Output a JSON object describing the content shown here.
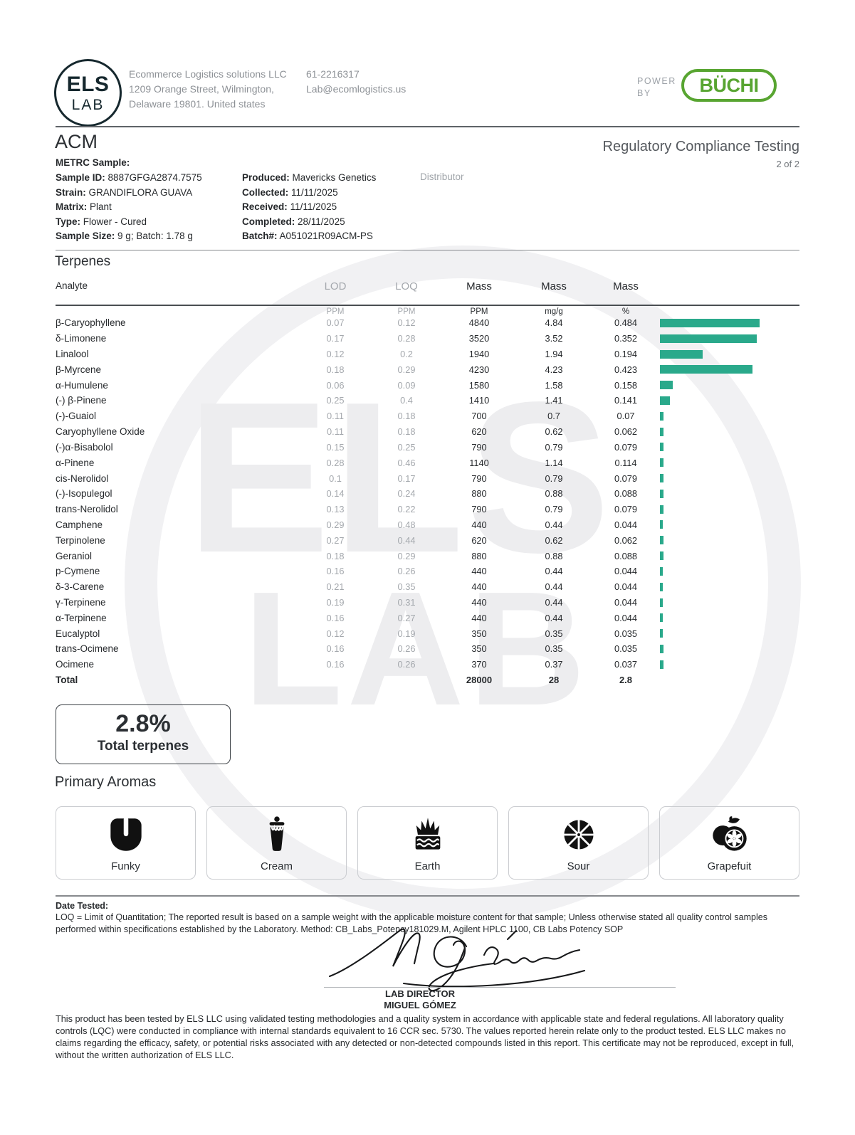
{
  "header": {
    "logo": {
      "line1": "ELS",
      "line2": "LAB"
    },
    "company": {
      "name": "Ecommerce Logistics solutions LLC",
      "address1": "1209 Orange Street, Wilmington,",
      "address2": "Delaware 19801. United states"
    },
    "contact": {
      "phone": "61-2216317",
      "email": "Lab@ecomlogistics.us"
    },
    "power_by": {
      "label1": "POWER",
      "label2": "BY",
      "brand": "BÜCHI",
      "brand_color": "#58a531"
    }
  },
  "report": {
    "client": "ACM",
    "title": "Regulatory Compliance Testing",
    "page": "2 of 2",
    "metrc_label": "METRC Sample:",
    "meta_col1": [
      {
        "label": "Sample ID:",
        "value": "8887GFGA2874.7575"
      },
      {
        "label": "Strain:",
        "value": "GRANDIFLORA GUAVA"
      },
      {
        "label": "Matrix:",
        "value": "Plant"
      },
      {
        "label": "Type:",
        "value": "Flower - Cured"
      },
      {
        "label": "Sample Size:",
        "value": "9 g; Batch: 1.78 g"
      }
    ],
    "meta_col2": [
      {
        "label": "Produced:",
        "value": "Mavericks Genetics"
      },
      {
        "label": "Collected:",
        "value": "11/11/2025"
      },
      {
        "label": "Received:",
        "value": "11/11/2025"
      },
      {
        "label": "Completed:",
        "value": "28/11/2025"
      },
      {
        "label": "Batch#:",
        "value": "A051021R09ACM-PS"
      }
    ],
    "distributor_label": "Distributor"
  },
  "terpenes": {
    "section_title": "Terpenes",
    "columns": [
      "Analyte",
      "LOD",
      "LOQ",
      "Mass",
      "Mass",
      "Mass"
    ],
    "units": [
      "PPM",
      "PPM",
      "PPM",
      "mg/g",
      "%"
    ],
    "bar_color": "#2aa98b",
    "rows": [
      {
        "name": "β-Caryophyllene",
        "lod": "0.07",
        "loq": "0.12",
        "ppm": "4840",
        "mgg": "4.84",
        "pct": "0.484",
        "bar": 140
      },
      {
        "name": "δ-Limonene",
        "lod": "0.17",
        "loq": "0.28",
        "ppm": "3520",
        "mgg": "3.52",
        "pct": "0.352",
        "bar": 136
      },
      {
        "name": "Linalool",
        "lod": "0.12",
        "loq": "0.2",
        "ppm": "1940",
        "mgg": "1.94",
        "pct": "0.194",
        "bar": 60
      },
      {
        "name": "β-Myrcene",
        "lod": "0.18",
        "loq": "0.29",
        "ppm": "4230",
        "mgg": "4.23",
        "pct": "0.423",
        "bar": 130
      },
      {
        "name": "α-Humulene",
        "lod": "0.06",
        "loq": "0.09",
        "ppm": "1580",
        "mgg": "1.58",
        "pct": "0.158",
        "bar": 18
      },
      {
        "name": "(-) β-Pinene",
        "lod": "0.25",
        "loq": "0.4",
        "ppm": "1410",
        "mgg": "1.41",
        "pct": "0.141",
        "bar": 14
      },
      {
        "name": "(-)-Guaiol",
        "lod": "0.11",
        "loq": "0.18",
        "ppm": "700",
        "mgg": "0.7",
        "pct": "0.07",
        "bar": 5
      },
      {
        "name": "Caryophyllene Oxide",
        "lod": "0.11",
        "loq": "0.18",
        "ppm": "620",
        "mgg": "0.62",
        "pct": "0.062",
        "bar": 5
      },
      {
        "name": "(-)α-Bisabolol",
        "lod": "0.15",
        "loq": "0.25",
        "ppm": "790",
        "mgg": "0.79",
        "pct": "0.079",
        "bar": 5
      },
      {
        "name": "α-Pinene",
        "lod": "0.28",
        "loq": "0.46",
        "ppm": "1140",
        "mgg": "1.14",
        "pct": "0.114",
        "bar": 5
      },
      {
        "name": "cis-Nerolidol",
        "lod": "0.1",
        "loq": "0.17",
        "ppm": "790",
        "mgg": "0.79",
        "pct": "0.079",
        "bar": 5
      },
      {
        "name": "(-)-Isopulegol",
        "lod": "0.14",
        "loq": "0.24",
        "ppm": "880",
        "mgg": "0.88",
        "pct": "0.088",
        "bar": 5
      },
      {
        "name": "trans-Nerolidol",
        "lod": "0.13",
        "loq": "0.22",
        "ppm": "790",
        "mgg": "0.79",
        "pct": "0.079",
        "bar": 5
      },
      {
        "name": "Camphene",
        "lod": "0.29",
        "loq": "0.48",
        "ppm": "440",
        "mgg": "0.44",
        "pct": "0.044",
        "bar": 4
      },
      {
        "name": "Terpinolene",
        "lod": "0.27",
        "loq": "0.44",
        "ppm": "620",
        "mgg": "0.62",
        "pct": "0.062",
        "bar": 5
      },
      {
        "name": "Geraniol",
        "lod": "0.18",
        "loq": "0.29",
        "ppm": "880",
        "mgg": "0.88",
        "pct": "0.088",
        "bar": 5
      },
      {
        "name": "p-Cymene",
        "lod": "0.16",
        "loq": "0.26",
        "ppm": "440",
        "mgg": "0.44",
        "pct": "0.044",
        "bar": 4
      },
      {
        "name": "δ-3-Carene",
        "lod": "0.21",
        "loq": "0.35",
        "ppm": "440",
        "mgg": "0.44",
        "pct": "0.044",
        "bar": 4
      },
      {
        "name": "γ-Terpinene",
        "lod": "0.19",
        "loq": "0.31",
        "ppm": "440",
        "mgg": "0.44",
        "pct": "0.044",
        "bar": 4
      },
      {
        "name": "α-Terpinene",
        "lod": "0.16",
        "loq": "0.27",
        "ppm": "440",
        "mgg": "0.44",
        "pct": "0.044",
        "bar": 4
      },
      {
        "name": "Eucalyptol",
        "lod": "0.12",
        "loq": "0.19",
        "ppm": "350",
        "mgg": "0.35",
        "pct": "0.035",
        "bar": 4
      },
      {
        "name": "trans-Ocimene",
        "lod": "0.16",
        "loq": "0.26",
        "ppm": "350",
        "mgg": "0.35",
        "pct": "0.035",
        "bar": 5
      },
      {
        "name": "Ocimene",
        "lod": "0.16",
        "loq": "0.26",
        "ppm": "370",
        "mgg": "0.37",
        "pct": "0.037",
        "bar": 5
      }
    ],
    "total": {
      "label": "Total",
      "ppm": "28000",
      "mgg": "28",
      "pct": "2.8"
    }
  },
  "summary": {
    "value": "2.8%",
    "label": "Total terpenes"
  },
  "aromas": {
    "section_title": "Primary Aromas",
    "items": [
      {
        "label": "Funky",
        "icon": "funky-icon"
      },
      {
        "label": "Cream",
        "icon": "cream-icon"
      },
      {
        "label": "Earth",
        "icon": "earth-icon"
      },
      {
        "label": "Sour",
        "icon": "sour-icon"
      },
      {
        "label": "Grapefuit",
        "icon": "grapefruit-icon"
      }
    ]
  },
  "footnotes": {
    "date_tested_label": "Date Tested:",
    "loq_note": "LOQ = Limit of Quantitation; The reported result is based on a sample weight with the applicable moisture content for that sample; Unless otherwise stated all quality control samples performed within specifications established by the Laboratory. Method: CB_Labs_Potency181029.M, Agilent HPLC 1100, CB Labs Potency SOP"
  },
  "signature": {
    "role": "LAB DIRECTOR",
    "name": "MIGUEL GÓMEZ"
  },
  "disclaimer": "This product has been tested by ELS LLC using validated testing methodologies and a quality system in accordance with applicable state and federal regulations. All laboratory quality controls (LQC) were conducted in compliance with internal standards equivalent to 16 CCR sec. 5730. The values reported herein relate only to the product tested. ELS LLC makes no claims regarding the efficacy, safety, or potential risks associated with any detected or non-detected compounds listed in this report. This certificate may not be reproduced, except in full, without the written authorization of ELS LLC.",
  "watermark": {
    "line1": "ELS",
    "line2": "LAB"
  }
}
